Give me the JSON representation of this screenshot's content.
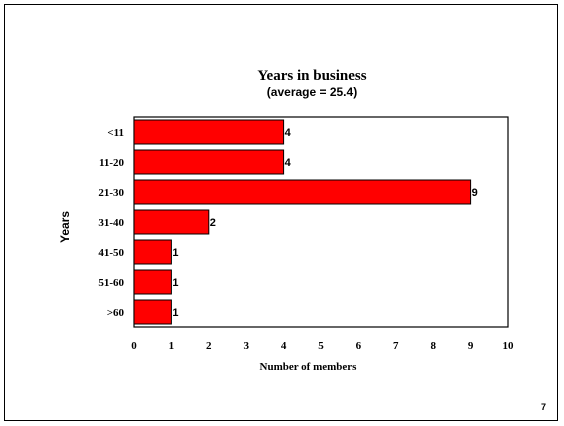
{
  "chart_data": {
    "type": "bar",
    "orientation": "horizontal",
    "title": "Years in business",
    "subtitle": "(average = 25.4)",
    "categories": [
      "<11",
      "11-20",
      "21-30",
      "31-40",
      "41-50",
      "51-60",
      ">60"
    ],
    "values": [
      4,
      4,
      9,
      2,
      1,
      1,
      1
    ],
    "xlabel": "Number of members",
    "ylabel": "Years",
    "xlim": [
      0,
      10
    ],
    "xticks": [
      "0",
      "1",
      "2",
      "3",
      "4",
      "5",
      "6",
      "7",
      "8",
      "9",
      "10"
    ],
    "bar_color": "#ff0000",
    "grid": false,
    "data_labels": true
  },
  "page_number": "7"
}
